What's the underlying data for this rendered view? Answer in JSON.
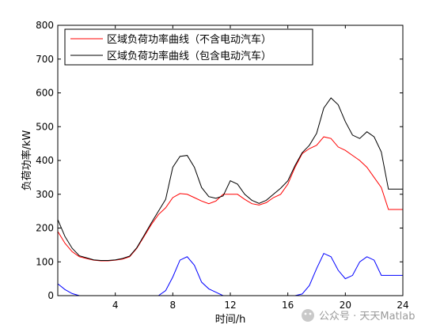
{
  "chart_data": {
    "type": "line",
    "xlabel": "时间/h",
    "ylabel": "负荷功率/kW",
    "xlim": [
      0,
      24
    ],
    "ylim": [
      0,
      800
    ],
    "xticks": [
      4,
      8,
      12,
      16,
      20,
      24
    ],
    "yticks": [
      0,
      100,
      200,
      300,
      400,
      500,
      600,
      700,
      800
    ],
    "grid": false,
    "legend_position": "top-left",
    "x": [
      0,
      0.5,
      1,
      1.5,
      2,
      2.5,
      3,
      3.5,
      4,
      4.5,
      5,
      5.5,
      6,
      6.5,
      7,
      7.5,
      8,
      8.5,
      9,
      9.5,
      10,
      10.5,
      11,
      11.5,
      12,
      12.5,
      13,
      13.5,
      14,
      14.5,
      15,
      15.5,
      16,
      16.5,
      17,
      17.5,
      18,
      18.5,
      19,
      19.5,
      20,
      20.5,
      21,
      21.5,
      22,
      22.5,
      23,
      23.5,
      24
    ],
    "series": [
      {
        "name": "区域负荷功率曲线（不含电动汽车）",
        "color": "#ff0000",
        "values": [
          190,
          155,
          130,
          115,
          110,
          105,
          103,
          103,
          105,
          108,
          115,
          140,
          175,
          210,
          240,
          260,
          290,
          302,
          300,
          290,
          280,
          272,
          280,
          300,
          300,
          300,
          285,
          272,
          268,
          275,
          290,
          300,
          330,
          380,
          420,
          435,
          445,
          470,
          465,
          440,
          430,
          415,
          400,
          380,
          350,
          320,
          255,
          255,
          255
        ]
      },
      {
        "name": "区域负荷功率曲线（包含电动汽车）",
        "color": "#000000",
        "values": [
          225,
          175,
          140,
          118,
          112,
          106,
          104,
          104,
          106,
          110,
          117,
          142,
          178,
          215,
          250,
          285,
          380,
          412,
          415,
          380,
          320,
          293,
          288,
          295,
          340,
          330,
          300,
          282,
          273,
          282,
          300,
          318,
          340,
          385,
          423,
          445,
          480,
          555,
          585,
          565,
          515,
          475,
          465,
          485,
          470,
          425,
          315,
          315,
          315
        ]
      },
      {
        "name": "",
        "color": "#0000ff",
        "values": [
          35,
          18,
          6,
          0,
          -5,
          -5,
          -5,
          -5,
          -5,
          -5,
          -5,
          -5,
          -5,
          -5,
          0,
          15,
          55,
          105,
          115,
          90,
          40,
          20,
          10,
          0,
          -5,
          -5,
          -5,
          -5,
          -5,
          -5,
          -5,
          -5,
          -5,
          0,
          5,
          30,
          80,
          125,
          115,
          75,
          50,
          60,
          100,
          115,
          105,
          60,
          60,
          60,
          60
        ]
      }
    ]
  },
  "watermark": "公众号 · 天天Matlab"
}
